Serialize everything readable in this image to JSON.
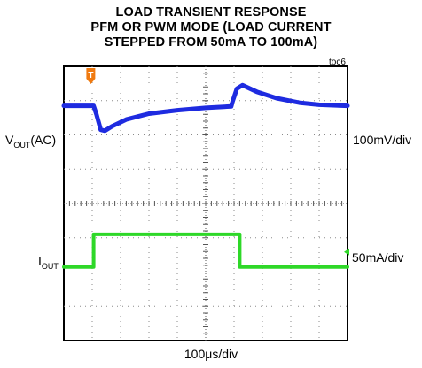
{
  "chart_data": {
    "type": "line",
    "title_lines": [
      "LOAD TRANSIENT RESPONSE",
      "PFM OR PWM MODE (LOAD CURRENT",
      "STEPPED FROM 50mA TO 100mA)"
    ],
    "figure_id": "toc6",
    "trigger_marker": "T",
    "timebase": "100μs/div",
    "x_divisions": 10,
    "y_divisions": 8,
    "grid": true,
    "series": [
      {
        "name_main": "V",
        "name_sub": "OUT",
        "name_suffix": "(AC)",
        "scale": "100mV/div",
        "color": "#1e2be0",
        "ground_marker": false,
        "points": [
          [
            0.0,
            2.85
          ],
          [
            1.05,
            2.85
          ],
          [
            1.15,
            2.6
          ],
          [
            1.3,
            2.15
          ],
          [
            1.45,
            2.12
          ],
          [
            1.7,
            2.25
          ],
          [
            2.2,
            2.45
          ],
          [
            3.0,
            2.62
          ],
          [
            4.0,
            2.72
          ],
          [
            5.0,
            2.79
          ],
          [
            5.9,
            2.83
          ],
          [
            5.95,
            2.98
          ],
          [
            6.1,
            3.35
          ],
          [
            6.3,
            3.45
          ],
          [
            6.8,
            3.26
          ],
          [
            7.5,
            3.07
          ],
          [
            8.3,
            2.94
          ],
          [
            9.0,
            2.88
          ],
          [
            10.0,
            2.85
          ]
        ]
      },
      {
        "name_main": "I",
        "name_sub": "OUT",
        "name_suffix": "",
        "scale": "50mA/div",
        "color": "#2ed828",
        "ground_marker": true,
        "points": [
          [
            0.0,
            -1.85
          ],
          [
            1.05,
            -1.85
          ],
          [
            1.05,
            -0.9
          ],
          [
            6.2,
            -0.9
          ],
          [
            6.2,
            -1.85
          ],
          [
            10.0,
            -1.85
          ]
        ]
      }
    ]
  }
}
